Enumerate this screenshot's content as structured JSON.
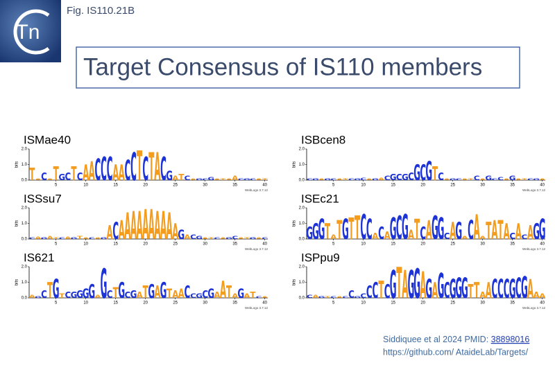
{
  "header": {
    "logo_text": "Tn",
    "fig_label": "Fig. IS110.21B",
    "title": "Target Consensus of IS110 members"
  },
  "logo_axis": {
    "ylabel": "bits",
    "ylim": [
      0,
      2
    ],
    "yticks": [
      {
        "value": 0,
        "label": "0.0"
      },
      {
        "value": 1,
        "label": "1.0"
      },
      {
        "value": 2,
        "label": "2.0"
      }
    ],
    "xticks": [
      5,
      10,
      15,
      20,
      25,
      30,
      35,
      40
    ],
    "credit": "WebLogo 3.7.12",
    "colors": {
      "A": "#f49c1e",
      "T": "#f49c1e",
      "C": "#1d33d6",
      "G": "#1d33d6"
    }
  },
  "logos": [
    {
      "name": "ISMae40",
      "sequence": "TACATGCTCAACCCAACCTCTACGATCAGCGATAACGCAT",
      "bits": [
        0.8,
        0.1,
        0.5,
        0.1,
        0.9,
        0.4,
        0.5,
        0.9,
        0.5,
        1.0,
        1.2,
        1.4,
        1.5,
        1.5,
        1.0,
        1.0,
        1.3,
        1.8,
        1.9,
        1.5,
        1.8,
        1.8,
        1.5,
        0.6,
        0.3,
        0.4,
        0.3,
        0.1,
        0.1,
        0.1,
        0.2,
        0.1,
        0.1,
        0.1,
        0.3,
        0.1,
        0.1,
        0.1,
        0.1,
        0.1
      ]
    },
    {
      "name": "ISSsu7",
      "sequence": "CAGATCAGTACAGACAAAAAAAAAAGACGATCAGCATGAC",
      "bits": [
        0.1,
        0.15,
        0.1,
        0.2,
        0.1,
        0.1,
        0.15,
        0.1,
        0.2,
        0.1,
        0.1,
        0.1,
        0.1,
        0.9,
        1.1,
        1.2,
        1.7,
        1.8,
        1.8,
        1.9,
        1.9,
        1.8,
        1.8,
        1.7,
        1.0,
        0.6,
        0.3,
        0.3,
        0.2,
        0.1,
        0.1,
        0.1,
        0.1,
        0.1,
        0.2,
        0.1,
        0.1,
        0.1,
        0.1,
        0.1
      ]
    },
    {
      "name": "IS621",
      "sequence": "AGCTGTCGGGGAGCTGCGATGAGTAACCGCGAATAGATCA",
      "bits": [
        0.2,
        0.1,
        0.5,
        1.0,
        1.2,
        0.3,
        0.4,
        0.4,
        0.5,
        0.6,
        0.9,
        0.2,
        1.9,
        0.5,
        0.7,
        1.0,
        0.4,
        0.5,
        0.4,
        0.8,
        0.9,
        0.8,
        1.0,
        0.6,
        0.5,
        0.6,
        0.8,
        0.3,
        0.3,
        0.5,
        0.6,
        0.4,
        1.1,
        0.8,
        0.3,
        0.6,
        0.3,
        0.4,
        0.1,
        0.1
      ]
    },
    {
      "name": "ISBcen8",
      "sequence": "CGAGCATCGCAGACGCGCGCGTCAGCATCAGCCAGATCGA",
      "bits": [
        0.1,
        0.1,
        0.1,
        0.1,
        0.1,
        0.1,
        0.1,
        0.1,
        0.1,
        0.15,
        0.1,
        0.1,
        0.15,
        0.3,
        0.4,
        0.4,
        0.4,
        0.5,
        1.0,
        1.0,
        1.2,
        0.9,
        0.5,
        0.1,
        0.1,
        0.1,
        0.1,
        0.1,
        0.3,
        0.1,
        0.3,
        0.1,
        0.2,
        0.1,
        0.3,
        0.1,
        0.1,
        0.1,
        0.1,
        0.1
      ]
    },
    {
      "name": "ISEc21",
      "sequence": "GGGTATGTTCCACAGCGATCAGGCAGACAATATACACAGG",
      "bits": [
        0.8,
        1.0,
        1.3,
        1.0,
        0.3,
        1.2,
        1.3,
        1.4,
        1.5,
        1.6,
        1.3,
        0.4,
        0.8,
        0.5,
        1.4,
        1.5,
        1.6,
        0.6,
        1.3,
        0.8,
        1.2,
        1.5,
        1.4,
        0.4,
        1.1,
        1.1,
        0.2,
        1.2,
        1.6,
        0.2,
        1.1,
        1.2,
        1.2,
        1.0,
        0.4,
        1.0,
        0.3,
        0.9,
        1.0,
        1.3
      ]
    },
    {
      "name": "ISPpu9",
      "sequence": "CAGTCACCGCCCTCGTAGGAGAGCGGGTTAACCCGCGAAA",
      "bits": [
        0.2,
        0.2,
        0.1,
        0.1,
        0.1,
        0.1,
        0.1,
        0.5,
        0.1,
        0.3,
        0.8,
        1.0,
        1.1,
        0.9,
        1.8,
        2.0,
        1.8,
        1.8,
        1.9,
        1.7,
        1.2,
        1.0,
        1.6,
        1.0,
        1.2,
        1.3,
        1.3,
        0.9,
        1.0,
        0.4,
        1.0,
        1.2,
        1.2,
        1.2,
        1.2,
        1.3,
        1.4,
        1.2,
        0.4,
        0.3
      ]
    }
  ],
  "citation": {
    "text": "Siddiquee et al 2024 PMID: ",
    "link": "38898016",
    "url": "https://github.com/ AtaideLab/Targets/"
  }
}
